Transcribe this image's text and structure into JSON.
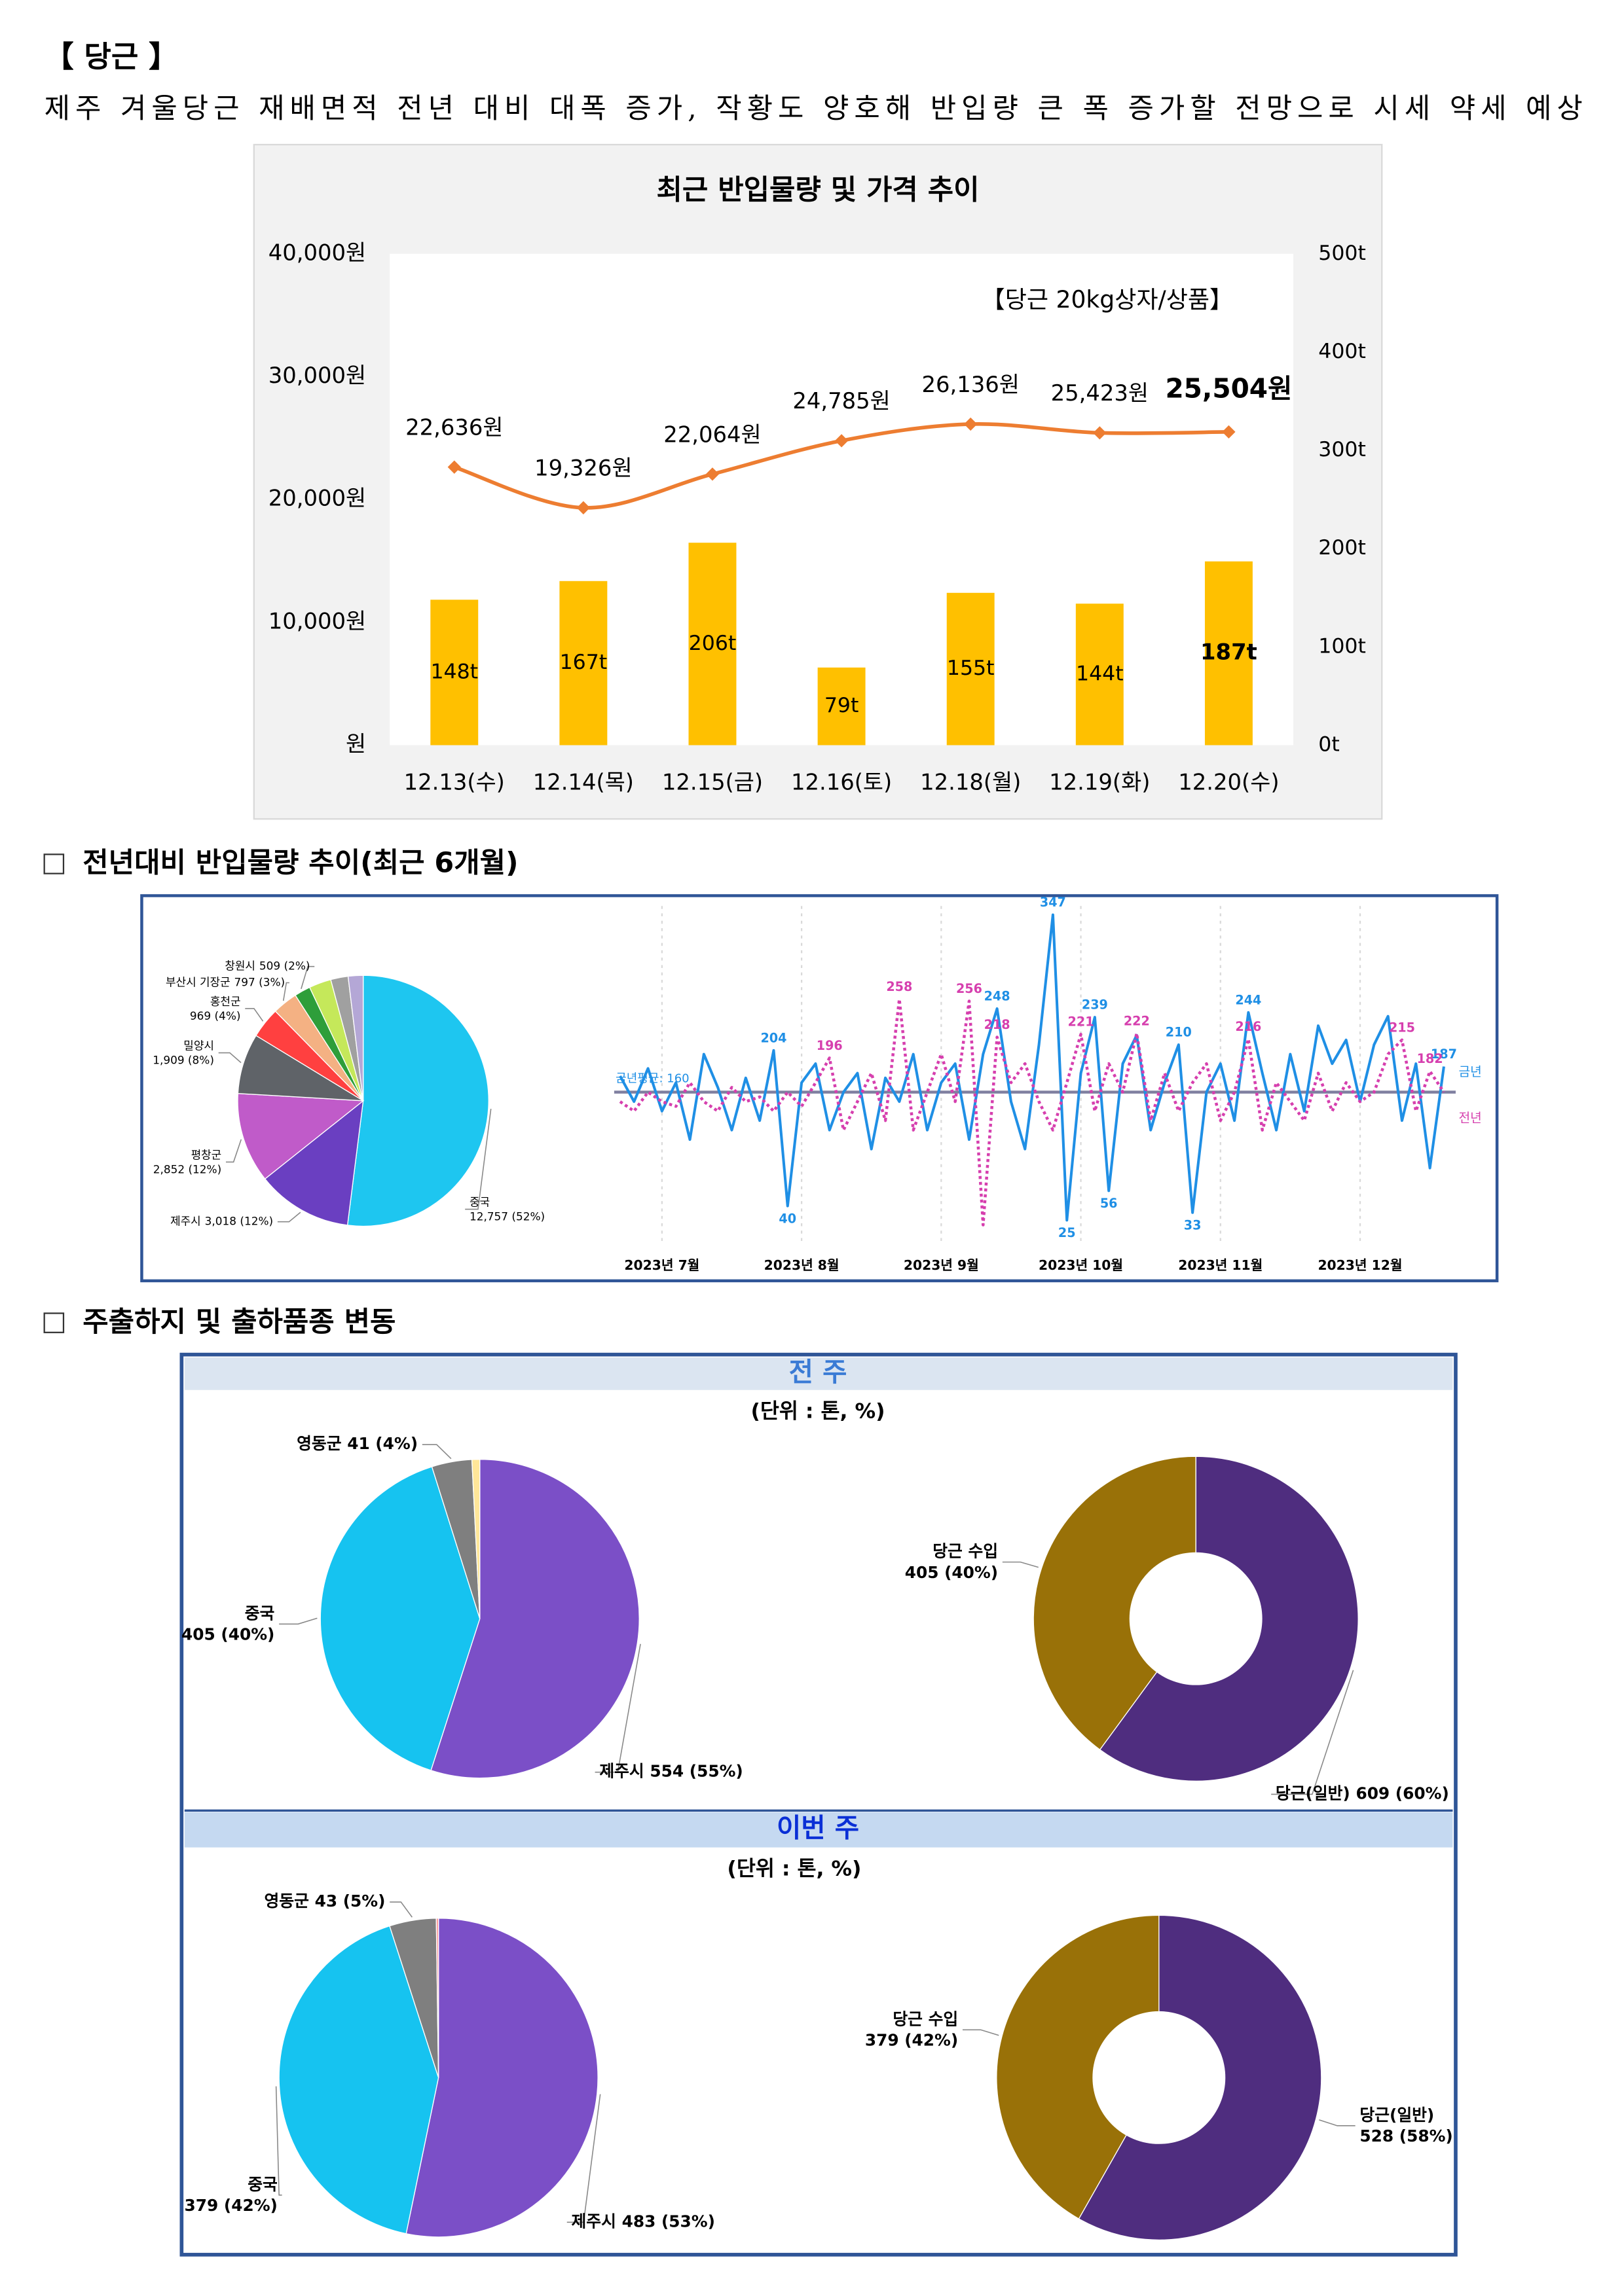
{
  "header": {
    "title": "【 당근 】",
    "summary": "제주 겨울당근 재배면적 전년 대비 대폭 증가, 작황도 양호해 반입량 큰 폭 증가할 전망으로 시세 약세 예상"
  },
  "sections": [
    "전년대비 반입물량 추이(최근 6개월)",
    "주출하지 및 출하품종 변동"
  ],
  "panels": [
    {
      "title": "전 주",
      "unit": "(단위 : 톤, %)"
    },
    {
      "title": "이번 주",
      "unit": "(단위 : 톤, %)"
    }
  ],
  "chart_data": [
    {
      "type": "combo",
      "title": "최근 반입물량 및 가격 추이",
      "annotation": "【당근 20kg상자/상품】",
      "categories": [
        "12.13(수)",
        "12.14(목)",
        "12.15(금)",
        "12.16(토)",
        "12.18(월)",
        "12.19(화)",
        "12.20(수)"
      ],
      "ylim": [
        0,
        40000
      ],
      "yticks": [
        {
          "value": 0,
          "label": "원"
        },
        {
          "value": 10000,
          "label": "10,000원"
        },
        {
          "value": 20000,
          "label": "20,000원"
        },
        {
          "value": 30000,
          "label": "30,000원"
        },
        {
          "value": 40000,
          "label": "40,000원"
        }
      ],
      "y2lim": [
        0,
        500
      ],
      "y2ticks": [
        {
          "value": 0,
          "label": "0t"
        },
        {
          "value": 100,
          "label": "100t"
        },
        {
          "value": 200,
          "label": "200t"
        },
        {
          "value": 300,
          "label": "300t"
        },
        {
          "value": 400,
          "label": "400t"
        },
        {
          "value": 500,
          "label": "500t"
        }
      ],
      "bold_last_label": true,
      "series": [
        {
          "type": "bar",
          "axis": "y2",
          "color": "#ffc000",
          "values": [
            148,
            167,
            206,
            79,
            155,
            144,
            187
          ],
          "value_labels": [
            "148t",
            "167t",
            "206t",
            "79t",
            "155t",
            "144t",
            "187t"
          ]
        },
        {
          "type": "line",
          "color": "#ed7d31",
          "values": [
            22636,
            19326,
            22064,
            24785,
            26136,
            25423,
            25504
          ],
          "value_labels": [
            "22,636원",
            "19,326원",
            "22,064원",
            "24,785원",
            "26,136원",
            "25,423원",
            "25,504원"
          ]
        }
      ]
    },
    {
      "type": "pie",
      "categories": [
        "중국",
        "제주시",
        "평창군",
        "밀양시",
        "홍천군",
        "부산시 기장군",
        "창원시",
        null,
        null,
        null
      ],
      "values": [
        12757,
        3018,
        2852,
        1909,
        969,
        797,
        509,
        700,
        550,
        472
      ],
      "value_labels": [
        "12,757 (52%)",
        "3,018 (12%)",
        "2,852 (12%)",
        "1,909 (8%)",
        "969 (4%)",
        "797 (3%)",
        "509 (2%)",
        null,
        null,
        null
      ],
      "colors": [
        "#1ec6f0",
        "#6a3fc1",
        "#c05bc9",
        "#5f6368",
        "#ff4040",
        "#f4b183",
        "#2e9e3a",
        "#c5e85a",
        "#a0a0a0",
        "#b4a7d6"
      ]
    },
    {
      "type": "line",
      "categories": [
        null,
        null,
        null,
        "2023년 7월",
        null,
        null,
        null,
        null,
        null,
        null,
        null,
        null,
        null,
        "2023년 8월",
        null,
        null,
        null,
        null,
        null,
        null,
        null,
        null,
        null,
        "2023년 9월",
        null,
        null,
        null,
        null,
        null,
        null,
        null,
        null,
        null,
        "2023년 10월",
        null,
        null,
        null,
        null,
        null,
        null,
        null,
        null,
        null,
        "2023년 11월",
        null,
        null,
        null,
        null,
        null,
        null,
        null,
        null,
        null,
        "2023년 12월",
        null,
        null,
        null,
        null,
        null,
        null
      ],
      "ylim": [
        0,
        350
      ],
      "average": {
        "value": 160,
        "label": "금년평균: 160"
      },
      "series": [
        {
          "name": "금년",
          "color": "#1f8fe5",
          "line_style": "solid",
          "values": [
            177,
            150,
            185,
            140,
            170,
            110,
            200,
            165,
            120,
            175,
            130,
            204,
            40,
            170,
            190,
            120,
            160,
            180,
            100,
            175,
            150,
            200,
            120,
            170,
            190,
            110,
            200,
            248,
            150,
            100,
            210,
            347,
            25,
            180,
            239,
            56,
            190,
            220,
            120,
            170,
            210,
            33,
            160,
            190,
            130,
            244,
            180,
            120,
            200,
            140,
            230,
            190,
            215,
            150,
            210,
            240,
            130,
            190,
            80,
            187
          ],
          "value_labels": [
            null,
            null,
            null,
            null,
            null,
            null,
            null,
            null,
            null,
            null,
            null,
            "204",
            "40",
            null,
            null,
            null,
            null,
            null,
            null,
            null,
            null,
            null,
            null,
            null,
            null,
            null,
            null,
            "248",
            null,
            null,
            null,
            "347",
            "25",
            null,
            "239",
            "56",
            null,
            null,
            null,
            null,
            "210",
            "33",
            null,
            null,
            null,
            "244",
            null,
            null,
            null,
            null,
            null,
            null,
            null,
            null,
            null,
            null,
            null,
            null,
            null,
            "187"
          ]
        },
        {
          "name": "전년",
          "color": "#d63fae",
          "line_style": "dotted",
          "values": [
            150,
            140,
            160,
            150,
            145,
            170,
            150,
            140,
            165,
            150,
            155,
            140,
            160,
            145,
            170,
            196,
            120,
            150,
            180,
            130,
            258,
            120,
            160,
            200,
            150,
            256,
            20,
            218,
            170,
            190,
            150,
            120,
            170,
            221,
            140,
            190,
            160,
            222,
            130,
            180,
            140,
            170,
            190,
            130,
            160,
            216,
            120,
            170,
            150,
            130,
            180,
            140,
            170,
            150,
            160,
            200,
            215,
            140,
            182,
            160
          ],
          "value_labels": [
            null,
            null,
            null,
            null,
            null,
            null,
            null,
            null,
            null,
            null,
            null,
            null,
            null,
            null,
            null,
            "196",
            null,
            null,
            null,
            null,
            "258",
            null,
            null,
            null,
            null,
            "256",
            null,
            "218",
            null,
            null,
            null,
            null,
            null,
            "221",
            null,
            null,
            null,
            "222",
            null,
            null,
            null,
            null,
            null,
            null,
            null,
            "216",
            null,
            null,
            null,
            null,
            null,
            null,
            null,
            null,
            null,
            null,
            "215",
            null,
            "182",
            null
          ]
        }
      ]
    },
    {
      "type": "pie",
      "categories": [
        "제주시",
        "중국",
        "영동군",
        null
      ],
      "values": [
        554,
        405,
        41,
        8
      ],
      "value_labels": [
        "554 (55%)",
        "405 (40%)",
        "41 (4%)",
        null
      ],
      "colors": [
        "#7b4fc7",
        "#16c3f0",
        "#7f7f7f",
        "#ffe699"
      ]
    },
    {
      "type": "donut",
      "categories": [
        "당근(일반)",
        "당근 수입"
      ],
      "values": [
        609,
        405
      ],
      "value_labels": [
        "609 (60%)",
        "405 (40%)"
      ],
      "colors": [
        "#4f2d7f",
        "#997108"
      ]
    },
    {
      "type": "pie",
      "categories": [
        "제주시",
        "중국",
        "영동군",
        null
      ],
      "values": [
        483,
        379,
        43,
        2
      ],
      "value_labels": [
        "483 (53%)",
        "379 (42%)",
        "43 (5%)",
        null
      ],
      "colors": [
        "#7b4fc7",
        "#16c3f0",
        "#7f7f7f",
        "#ff9999"
      ]
    },
    {
      "type": "donut",
      "categories": [
        "당근(일반)",
        "당근 수입"
      ],
      "values": [
        528,
        379
      ],
      "value_labels": [
        "528 (58%)",
        "379 (42%)"
      ],
      "colors": [
        "#4f2d7f",
        "#997108"
      ]
    }
  ]
}
